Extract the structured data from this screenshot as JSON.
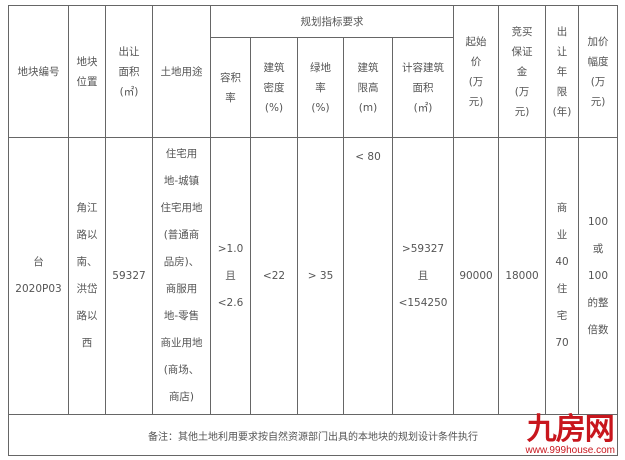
{
  "header": {
    "plot_no": [
      "地块编号"
    ],
    "location": [
      "地块",
      "位置"
    ],
    "area": [
      "出让",
      "面积",
      "(㎡)"
    ],
    "land_use": [
      "土地用途"
    ],
    "planning_group": "规划指标要求",
    "far": [
      "容积",
      "率"
    ],
    "building_density": [
      "建筑",
      "密度",
      "(%)"
    ],
    "green_ratio": [
      "绿地",
      "率",
      "(%)"
    ],
    "height_limit": [
      "建筑",
      "限高",
      "(m)"
    ],
    "gfa": [
      "计容建筑",
      "面积",
      "(㎡)"
    ],
    "start_price": [
      "起始",
      "价",
      "(万",
      "元)"
    ],
    "deposit": [
      "竞买",
      "保证",
      "金",
      "(万",
      "元)"
    ],
    "term": [
      "出",
      "让",
      "年",
      "限",
      "(年)"
    ],
    "increment": [
      "加价",
      "幅度",
      "(万",
      "元)"
    ]
  },
  "row": {
    "plot_no": [
      "台",
      "2020P03"
    ],
    "location": [
      "角江",
      "路以",
      "南、",
      "洪岱",
      "路以",
      "西"
    ],
    "area": [
      "59327"
    ],
    "land_use": [
      "住宅用",
      "地-城镇",
      "住宅用地",
      "(普通商",
      "品房)、",
      "商服用",
      "地-零售",
      "商业用地",
      "(商场、",
      "商店)"
    ],
    "far": [
      ">1.0",
      "且",
      "<2.6"
    ],
    "building_density": [
      "<22"
    ],
    "green_ratio": [
      "> 35"
    ],
    "height_limit": [
      "< 80"
    ],
    "gfa": [
      ">59327",
      "且",
      "<154250"
    ],
    "start_price": [
      "90000"
    ],
    "deposit": [
      "18000"
    ],
    "term": [
      "商",
      "业",
      "40",
      "住",
      "宅",
      "70"
    ],
    "increment": [
      "100",
      "或",
      "100",
      "的整",
      "倍数"
    ]
  },
  "note": "备注：其他土地利用要求按自然资源部门出具的本地块的规划设计条件执行",
  "watermark": {
    "logo": "九房网",
    "url": "www.999house.com",
    "color": "#c8161d"
  }
}
